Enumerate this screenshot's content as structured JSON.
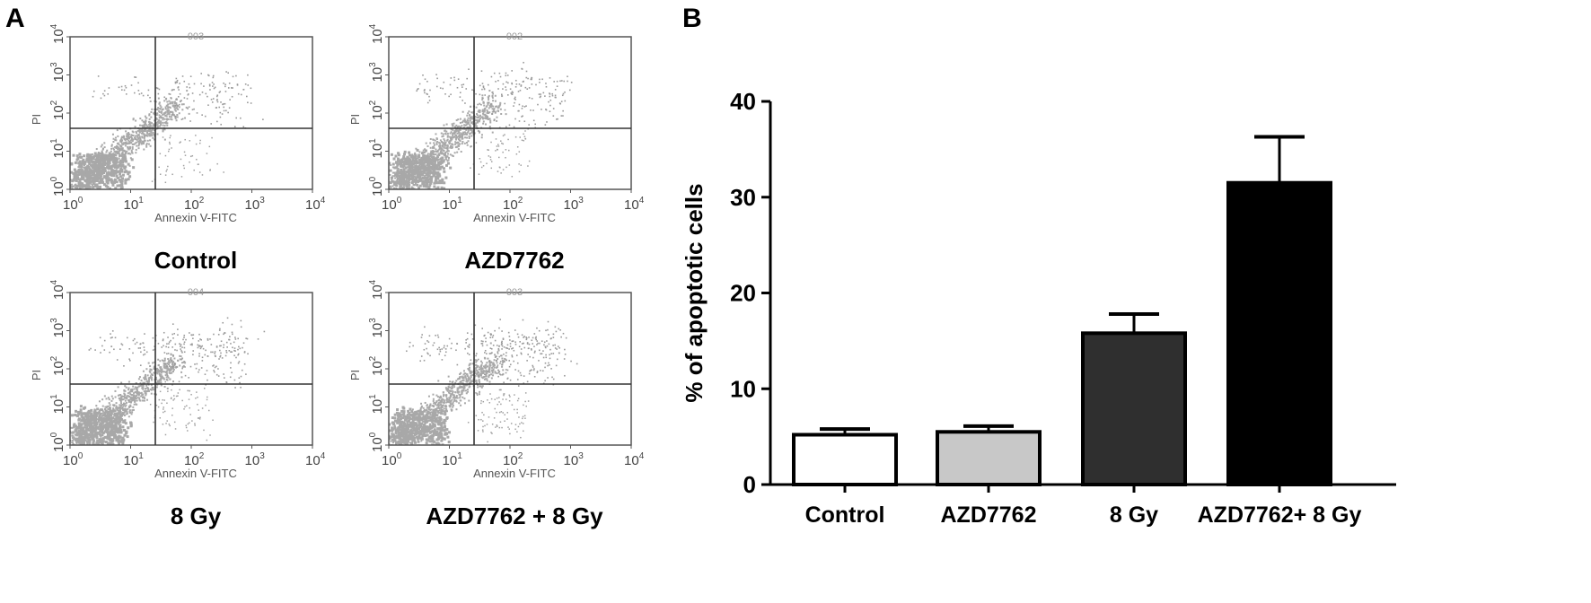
{
  "panels": {
    "a_label": "A",
    "b_label": "B"
  },
  "flow_panels": [
    {
      "caption": "Control",
      "code": "003",
      "xlabel": "Annexin V-FITC",
      "ylabel": "PI"
    },
    {
      "caption": "AZD7762",
      "code": "002",
      "xlabel": "Annexin V-FITC",
      "ylabel": "PI"
    },
    {
      "caption": "8 Gy",
      "code": "004",
      "xlabel": "Annexin V-FITC",
      "ylabel": "PI"
    },
    {
      "caption": "AZD7762 + 8 Gy",
      "code": "003",
      "xlabel": "Annexin V-FITC",
      "ylabel": "PI"
    }
  ],
  "flow_ticks": {
    "base": "10",
    "exponents": [
      "0",
      "1",
      "2",
      "3",
      "4"
    ]
  },
  "colors": {
    "control": "#ffffff",
    "azd7762": "#c8c8c8",
    "8gy": "#2f2f2f",
    "combo": "#000000",
    "flow_dots": "#a8a8a8"
  },
  "chart_data": {
    "type": "bar",
    "title": "",
    "xlabel": "",
    "ylabel": "% of apoptotic cells",
    "categories": [
      "Control",
      "AZD7762",
      "8 Gy",
      "AZD7762+ 8 Gy"
    ],
    "values": [
      5.2,
      5.5,
      15.8,
      31.5
    ],
    "errors": [
      0.6,
      0.6,
      2.0,
      4.8
    ],
    "ylim": [
      0,
      40
    ],
    "yticks": [
      0,
      10,
      20,
      30,
      40
    ],
    "grid": false,
    "legend": "none"
  }
}
